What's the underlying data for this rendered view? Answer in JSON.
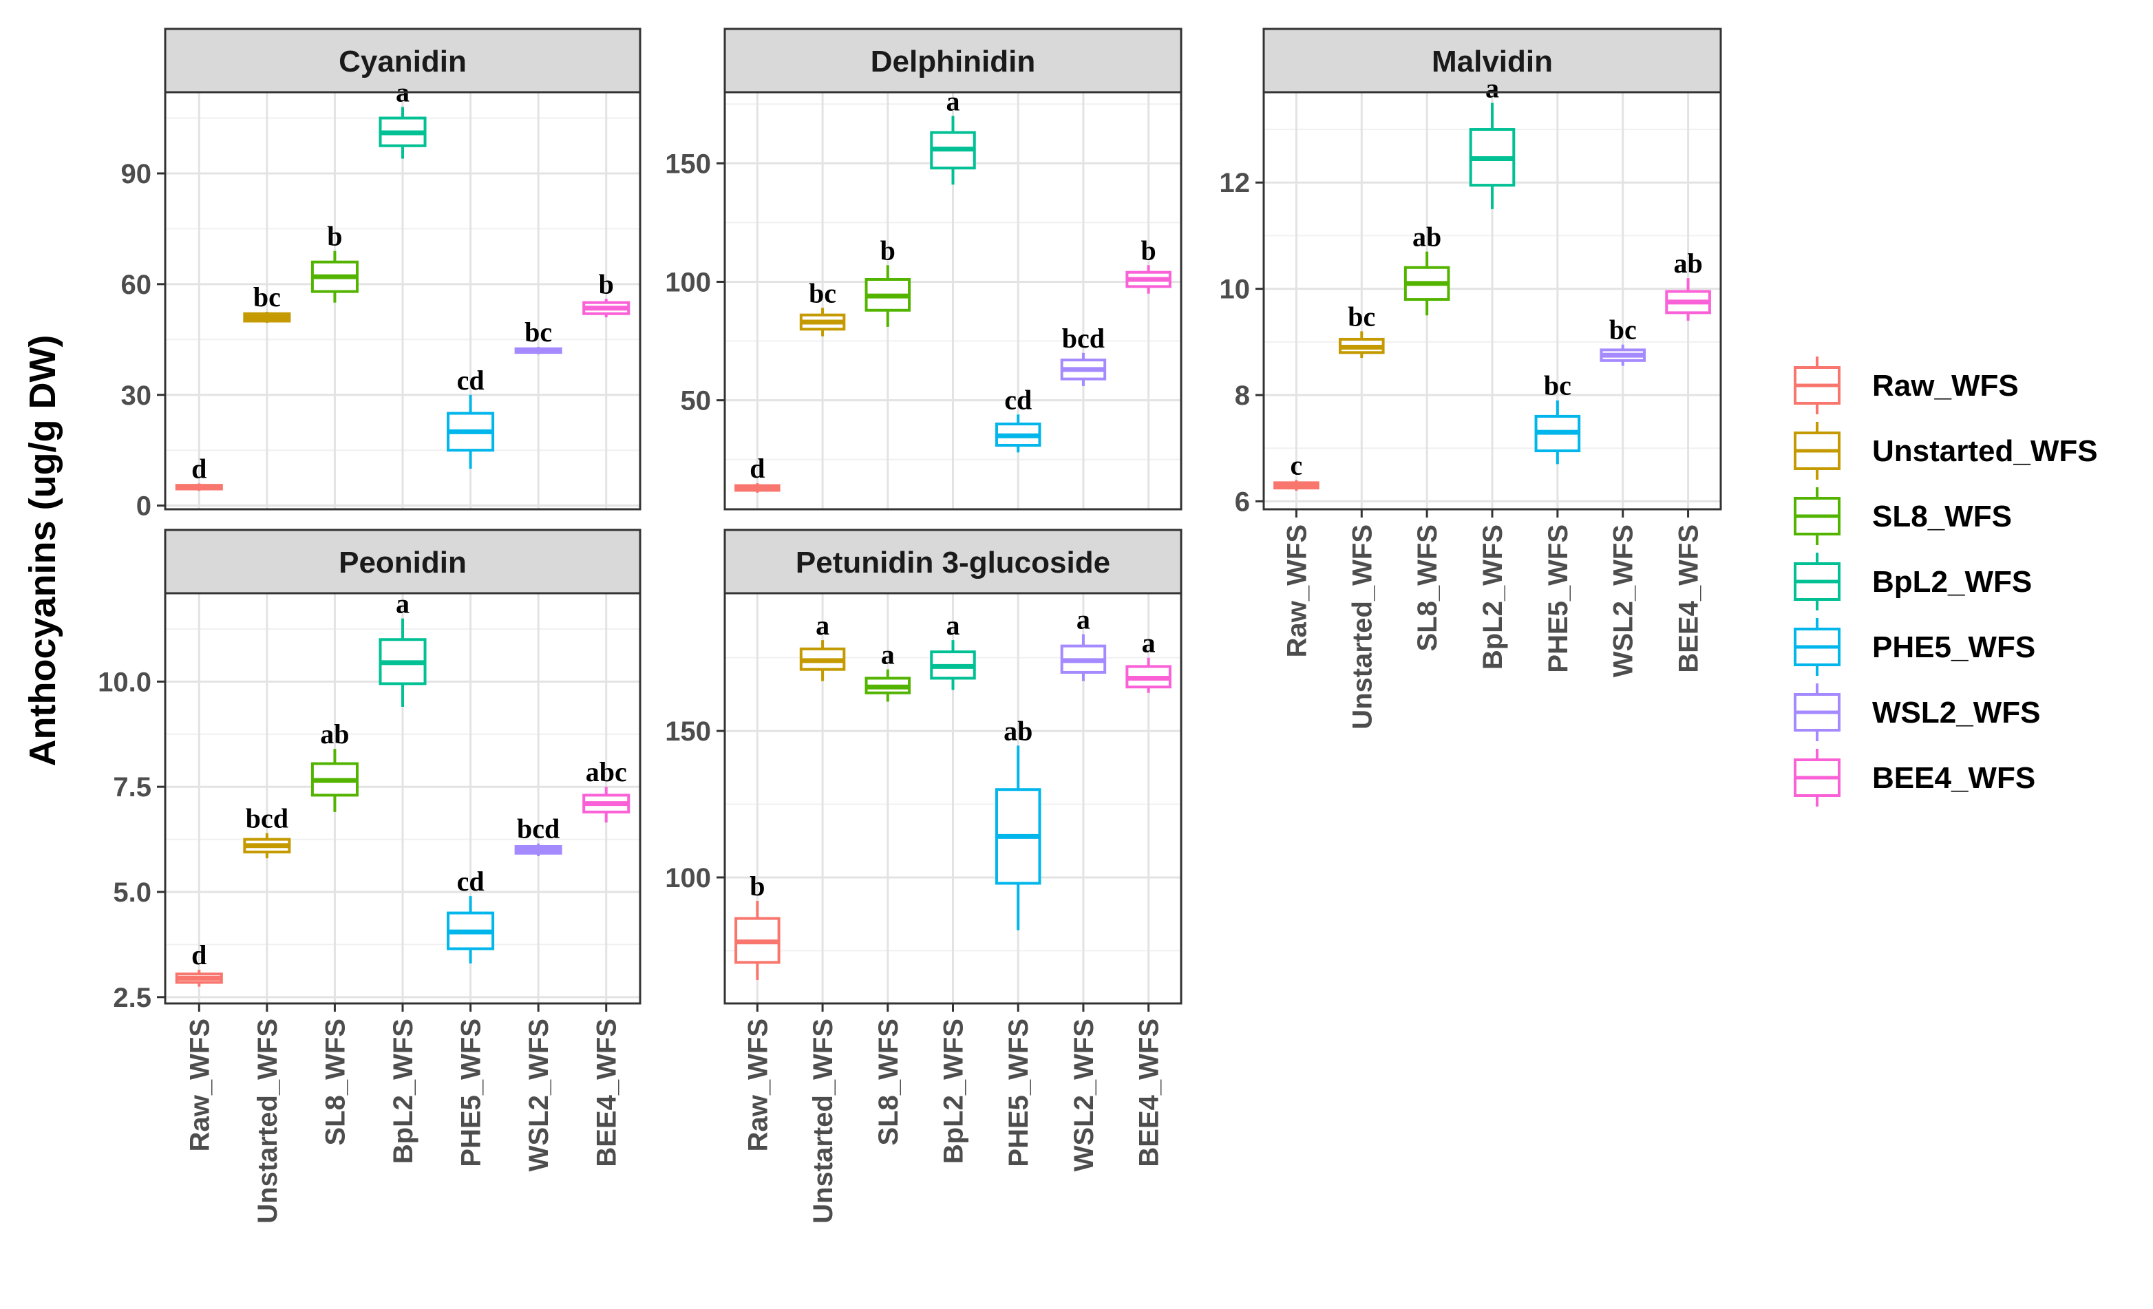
{
  "figure": {
    "ylabel": "Anthocyanins (ug/g DW)"
  },
  "groups": [
    "Raw_WFS",
    "Unstarted_WFS",
    "SL8_WFS",
    "BpL2_WFS",
    "PHE5_WFS",
    "WSL2_WFS",
    "BEE4_WFS"
  ],
  "colors": [
    "#F8766D",
    "#C49A00",
    "#53B400",
    "#00C094",
    "#00B6EB",
    "#A58AFF",
    "#FB61D7"
  ],
  "legend": {
    "items": [
      "Raw_WFS",
      "Unstarted_WFS",
      "SL8_WFS",
      "BpL2_WFS",
      "PHE5_WFS",
      "WSL2_WFS",
      "BEE4_WFS"
    ]
  },
  "chart_data": [
    {
      "type": "box",
      "title": "Cyanidin",
      "ylim": [
        -1,
        112
      ],
      "yticks": [
        0,
        30,
        60,
        90
      ],
      "ytick_labels": [
        "0",
        "30",
        "60",
        "90"
      ],
      "boxes": [
        {
          "group": "Raw_WFS",
          "min": 4.0,
          "q1": 4.5,
          "median": 5.0,
          "q3": 5.5,
          "max": 6.0,
          "letter": "d"
        },
        {
          "group": "Unstarted_WFS",
          "min": 49.5,
          "q1": 50.0,
          "median": 51.0,
          "q3": 52.0,
          "max": 52.5,
          "letter": "bc"
        },
        {
          "group": "SL8_WFS",
          "min": 55.0,
          "q1": 58.0,
          "median": 62.0,
          "q3": 66.0,
          "max": 69.0,
          "letter": "b"
        },
        {
          "group": "BpL2_WFS",
          "min": 94.0,
          "q1": 97.5,
          "median": 101.0,
          "q3": 105.0,
          "max": 108.0,
          "letter": "a"
        },
        {
          "group": "PHE5_WFS",
          "min": 10.0,
          "q1": 15.0,
          "median": 20.0,
          "q3": 25.0,
          "max": 30.0,
          "letter": "cd"
        },
        {
          "group": "WSL2_WFS",
          "min": 41.0,
          "q1": 41.5,
          "median": 42.0,
          "q3": 42.5,
          "max": 43.0,
          "letter": "bc"
        },
        {
          "group": "BEE4_WFS",
          "min": 51.0,
          "q1": 52.0,
          "median": 53.5,
          "q3": 55.0,
          "max": 56.0,
          "letter": "b"
        }
      ]
    },
    {
      "type": "box",
      "title": "Delphinidin",
      "ylim": [
        4,
        180
      ],
      "yticks": [
        50,
        100,
        150
      ],
      "ytick_labels": [
        "50",
        "100",
        "150"
      ],
      "boxes": [
        {
          "group": "Raw_WFS",
          "min": 11.0,
          "q1": 12.0,
          "median": 13.0,
          "q3": 14.0,
          "max": 15.0,
          "letter": "d"
        },
        {
          "group": "Unstarted_WFS",
          "min": 77.0,
          "q1": 80.0,
          "median": 83.0,
          "q3": 86.0,
          "max": 89.0,
          "letter": "bc"
        },
        {
          "group": "SL8_WFS",
          "min": 81.0,
          "q1": 88.0,
          "median": 94.0,
          "q3": 101.0,
          "max": 107.0,
          "letter": "b"
        },
        {
          "group": "BpL2_WFS",
          "min": 141.0,
          "q1": 148.0,
          "median": 156.0,
          "q3": 163.0,
          "max": 170.0,
          "letter": "a"
        },
        {
          "group": "PHE5_WFS",
          "min": 28.0,
          "q1": 31.0,
          "median": 35.0,
          "q3": 40.0,
          "max": 44.0,
          "letter": "cd"
        },
        {
          "group": "WSL2_WFS",
          "min": 56.0,
          "q1": 59.0,
          "median": 63.0,
          "q3": 67.0,
          "max": 70.0,
          "letter": "bcd"
        },
        {
          "group": "BEE4_WFS",
          "min": 95.0,
          "q1": 98.0,
          "median": 101.0,
          "q3": 104.0,
          "max": 107.0,
          "letter": "b"
        }
      ]
    },
    {
      "type": "box",
      "title": "Malvidin",
      "ylim": [
        5.85,
        13.7
      ],
      "yticks": [
        6,
        8,
        10,
        12
      ],
      "ytick_labels": [
        "6",
        "8",
        "10",
        "12"
      ],
      "boxes": [
        {
          "group": "Raw_WFS",
          "min": 6.2,
          "q1": 6.25,
          "median": 6.3,
          "q3": 6.35,
          "max": 6.4,
          "letter": "c"
        },
        {
          "group": "Unstarted_WFS",
          "min": 8.7,
          "q1": 8.8,
          "median": 8.9,
          "q3": 9.05,
          "max": 9.2,
          "letter": "bc"
        },
        {
          "group": "SL8_WFS",
          "min": 9.5,
          "q1": 9.8,
          "median": 10.1,
          "q3": 10.4,
          "max": 10.7,
          "letter": "ab"
        },
        {
          "group": "BpL2_WFS",
          "min": 11.5,
          "q1": 11.95,
          "median": 12.45,
          "q3": 13.0,
          "max": 13.5,
          "letter": "a"
        },
        {
          "group": "PHE5_WFS",
          "min": 6.7,
          "q1": 6.95,
          "median": 7.3,
          "q3": 7.6,
          "max": 7.9,
          "letter": "bc"
        },
        {
          "group": "WSL2_WFS",
          "min": 8.55,
          "q1": 8.65,
          "median": 8.75,
          "q3": 8.85,
          "max": 8.95,
          "letter": "bc"
        },
        {
          "group": "BEE4_WFS",
          "min": 9.4,
          "q1": 9.55,
          "median": 9.75,
          "q3": 9.95,
          "max": 10.2,
          "letter": "ab"
        }
      ]
    },
    {
      "type": "box",
      "title": "Peonidin",
      "ylim": [
        2.35,
        12.1
      ],
      "yticks": [
        2.5,
        5.0,
        7.5,
        10.0
      ],
      "ytick_labels": [
        "2.5",
        "5.0",
        "7.5",
        "10.0"
      ],
      "boxes": [
        {
          "group": "Raw_WFS",
          "min": 2.75,
          "q1": 2.85,
          "median": 2.95,
          "q3": 3.05,
          "max": 3.15,
          "letter": "d"
        },
        {
          "group": "Unstarted_WFS",
          "min": 5.8,
          "q1": 5.95,
          "median": 6.1,
          "q3": 6.25,
          "max": 6.4,
          "letter": "bcd"
        },
        {
          "group": "SL8_WFS",
          "min": 6.9,
          "q1": 7.3,
          "median": 7.65,
          "q3": 8.05,
          "max": 8.4,
          "letter": "ab"
        },
        {
          "group": "BpL2_WFS",
          "min": 9.4,
          "q1": 9.95,
          "median": 10.45,
          "q3": 11.0,
          "max": 11.5,
          "letter": "a"
        },
        {
          "group": "PHE5_WFS",
          "min": 3.3,
          "q1": 3.65,
          "median": 4.05,
          "q3": 4.5,
          "max": 4.9,
          "letter": "cd"
        },
        {
          "group": "WSL2_WFS",
          "min": 5.85,
          "q1": 5.92,
          "median": 6.0,
          "q3": 6.08,
          "max": 6.15,
          "letter": "bcd"
        },
        {
          "group": "BEE4_WFS",
          "min": 6.65,
          "q1": 6.9,
          "median": 7.1,
          "q3": 7.3,
          "max": 7.5,
          "letter": "abc"
        }
      ]
    },
    {
      "type": "box",
      "title": "Petunidin 3-glucoside",
      "ylim": [
        57,
        197
      ],
      "yticks": [
        100,
        150
      ],
      "ytick_labels": [
        "100",
        "150"
      ],
      "boxes": [
        {
          "group": "Raw_WFS",
          "min": 65.0,
          "q1": 71.0,
          "median": 78.0,
          "q3": 86.0,
          "max": 92.0,
          "letter": "b"
        },
        {
          "group": "Unstarted_WFS",
          "min": 167.0,
          "q1": 171.0,
          "median": 174.0,
          "q3": 178.0,
          "max": 181.0,
          "letter": "a"
        },
        {
          "group": "SL8_WFS",
          "min": 160.0,
          "q1": 163.0,
          "median": 165.0,
          "q3": 168.0,
          "max": 171.0,
          "letter": "a"
        },
        {
          "group": "BpL2_WFS",
          "min": 164.0,
          "q1": 168.0,
          "median": 172.0,
          "q3": 177.0,
          "max": 181.0,
          "letter": "a"
        },
        {
          "group": "PHE5_WFS",
          "min": 82.0,
          "q1": 98.0,
          "median": 114.0,
          "q3": 130.0,
          "max": 145.0,
          "letter": "ab"
        },
        {
          "group": "WSL2_WFS",
          "min": 167.0,
          "q1": 170.0,
          "median": 174.0,
          "q3": 179.0,
          "max": 183.0,
          "letter": "a"
        },
        {
          "group": "BEE4_WFS",
          "min": 163.0,
          "q1": 165.0,
          "median": 168.0,
          "q3": 172.0,
          "max": 175.0,
          "letter": "a"
        }
      ]
    }
  ]
}
